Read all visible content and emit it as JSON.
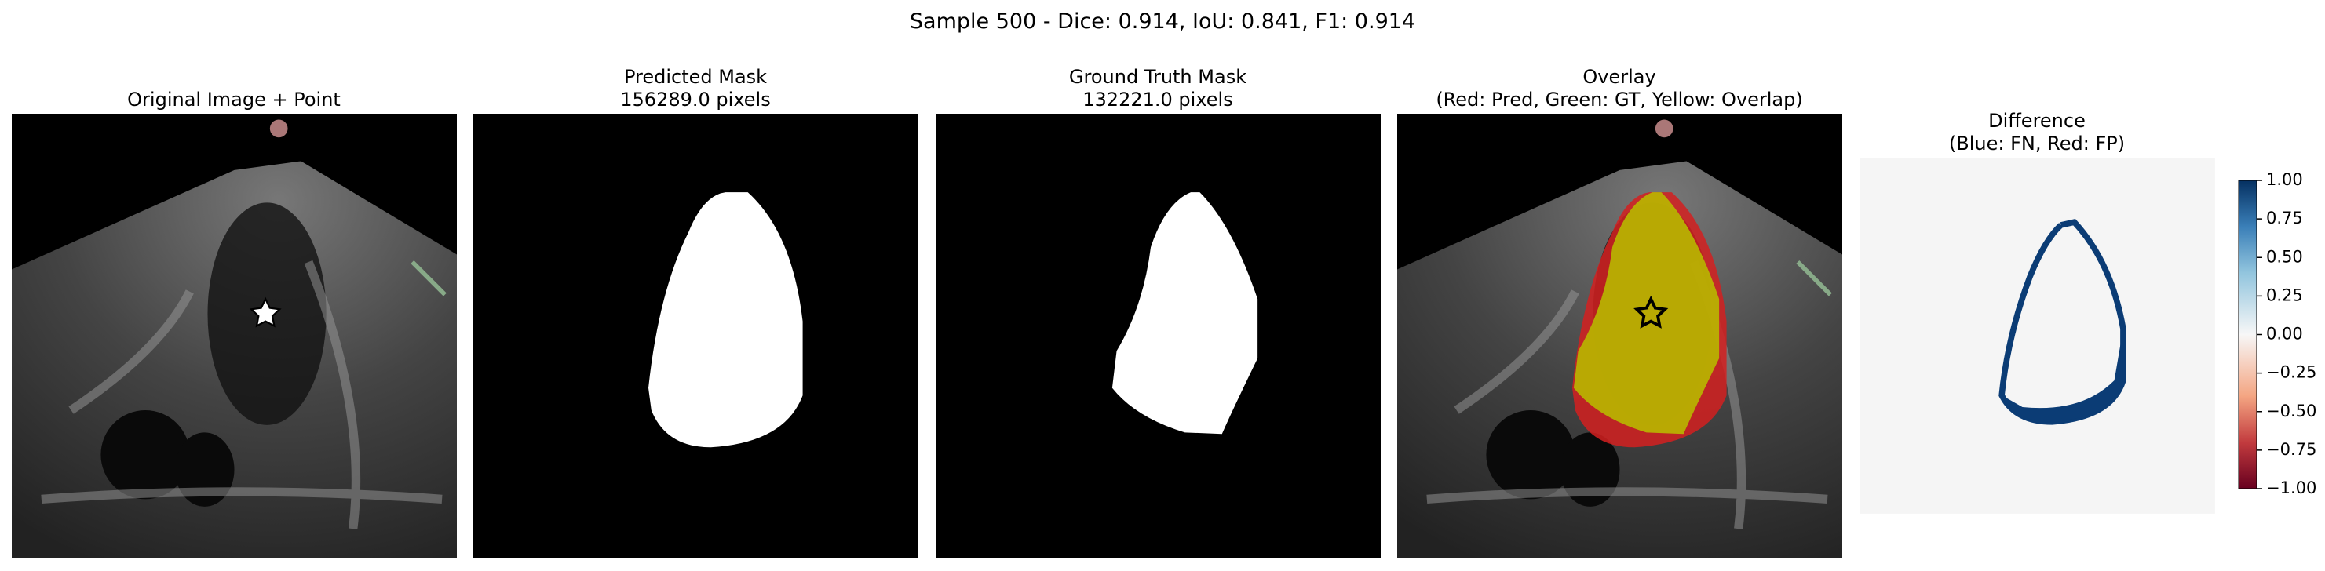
{
  "header": {
    "title": "Sample 500 - Dice: 0.914, IoU: 0.841, F1: 0.914"
  },
  "panels": [
    {
      "title": [
        "Original Image + Point"
      ]
    },
    {
      "title": [
        "Predicted Mask",
        "156289.0 pixels"
      ]
    },
    {
      "title": [
        "Ground Truth Mask",
        "132221.0 pixels"
      ]
    },
    {
      "title": [
        "Overlay",
        "(Red: Pred, Green: GT, Yellow: Overlap)"
      ]
    },
    {
      "title": [
        "Difference",
        "(Blue: FN, Red: FP)"
      ]
    }
  ],
  "colorbar": {
    "lim": [
      -1,
      1
    ],
    "colormap": "RdBu",
    "ticks": [
      {
        "value": 1,
        "label": "1.00"
      },
      {
        "value": 0.75,
        "label": "0.75"
      },
      {
        "value": 0.5,
        "label": "0.50"
      },
      {
        "value": 0.25,
        "label": "0.25"
      },
      {
        "value": 0,
        "label": "0.00"
      },
      {
        "value": -0.25,
        "label": "−0.25"
      },
      {
        "value": -0.5,
        "label": "−0.50"
      },
      {
        "value": -0.75,
        "label": "−0.75"
      },
      {
        "value": -1,
        "label": "−1.00"
      }
    ]
  }
}
